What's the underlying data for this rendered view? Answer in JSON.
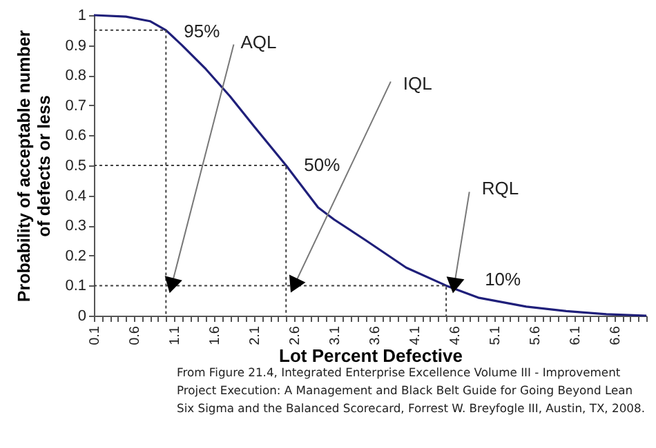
{
  "chart_data": {
    "type": "line",
    "xlabel": "Lot Percent Defective",
    "ylabel": "Probability of acceptable number of defects or less",
    "xlim": [
      0.1,
      7.0
    ],
    "xticks": [
      0.1,
      {
        "value": 0.2,
        "label": null
      },
      {
        "value": 0.3,
        "label": null
      },
      {
        "value": 0.4,
        "label": null
      },
      {
        "value": 0.5,
        "label": null
      },
      0.6,
      {
        "value": 0.7,
        "label": null
      },
      {
        "value": 0.8,
        "label": null
      },
      {
        "value": 0.9,
        "label": null
      },
      {
        "value": 1.0,
        "label": null
      },
      1.1,
      {
        "value": 1.2,
        "label": null
      },
      {
        "value": 1.3,
        "label": null
      },
      {
        "value": 1.4,
        "label": null
      },
      {
        "value": 1.5,
        "label": null
      },
      1.6,
      {
        "value": 1.7,
        "label": null
      },
      {
        "value": 1.8,
        "label": null
      },
      {
        "value": 1.9,
        "label": null
      },
      {
        "value": 2.0,
        "label": null
      },
      2.1,
      {
        "value": 2.2,
        "label": null
      },
      {
        "value": 2.3,
        "label": null
      },
      {
        "value": 2.4,
        "label": null
      },
      {
        "value": 2.5,
        "label": null
      },
      2.6,
      {
        "value": 2.7,
        "label": null
      },
      {
        "value": 2.8,
        "label": null
      },
      {
        "value": 2.9,
        "label": null
      },
      {
        "value": 3.0,
        "label": null
      },
      3.1,
      {
        "value": 3.2,
        "label": null
      },
      {
        "value": 3.3,
        "label": null
      },
      {
        "value": 3.4,
        "label": null
      },
      {
        "value": 3.5,
        "label": null
      },
      3.6,
      {
        "value": 3.7,
        "label": null
      },
      {
        "value": 3.8,
        "label": null
      },
      {
        "value": 3.9,
        "label": null
      },
      {
        "value": 4.0,
        "label": null
      },
      4.1,
      {
        "value": 4.2,
        "label": null
      },
      {
        "value": 4.3,
        "label": null
      },
      {
        "value": 4.4,
        "label": null
      },
      {
        "value": 4.5,
        "label": null
      },
      4.6,
      {
        "value": 4.7,
        "label": null
      },
      {
        "value": 4.8,
        "label": null
      },
      {
        "value": 4.9,
        "label": null
      },
      {
        "value": 5.0,
        "label": null
      },
      5.1,
      {
        "value": 5.2,
        "label": null
      },
      {
        "value": 5.3,
        "label": null
      },
      {
        "value": 5.4,
        "label": null
      },
      {
        "value": 5.5,
        "label": null
      },
      5.6,
      {
        "value": 5.7,
        "label": null
      },
      {
        "value": 5.8,
        "label": null
      },
      {
        "value": 5.9,
        "label": null
      },
      {
        "value": 6.0,
        "label": null
      },
      6.1,
      {
        "value": 6.2,
        "label": null
      },
      {
        "value": 6.3,
        "label": null
      },
      {
        "value": 6.4,
        "label": null
      },
      {
        "value": 6.5,
        "label": null
      },
      6.6,
      {
        "value": 6.7,
        "label": null
      },
      {
        "value": 6.8,
        "label": null
      },
      {
        "value": 6.9,
        "label": null
      },
      {
        "value": 7.0,
        "label": null
      }
    ],
    "ylim": [
      0,
      1
    ],
    "yticks": [
      0,
      0.1,
      0.2,
      0.3,
      0.4,
      0.5,
      0.6,
      0.7,
      0.8,
      0.9,
      1
    ],
    "grid": false,
    "marker": "none",
    "series": [
      {
        "color": "#1f1f7a",
        "line_style": "solid",
        "x": [
          0.1,
          0.5,
          0.8,
          1.0,
          1.2,
          1.5,
          1.8,
          2.1,
          2.5,
          2.9,
          3.1,
          3.5,
          4.0,
          4.5,
          4.9,
          5.5,
          6.0,
          6.5,
          7.0
        ],
        "values": [
          1.0,
          0.995,
          0.98,
          0.95,
          0.9,
          0.82,
          0.73,
          0.63,
          0.5,
          0.36,
          0.32,
          0.25,
          0.16,
          0.1,
          0.06,
          0.03,
          0.015,
          0.005,
          0.0
        ]
      },
      {
        "type": "line",
        "color": "#404040",
        "line_style": "dotted",
        "x": [
          0.1,
          1.0,
          1.0
        ],
        "values": [
          0.95,
          0.95,
          0
        ]
      },
      {
        "type": "line",
        "color": "#404040",
        "line_style": "dotted",
        "x": [
          0.1,
          2.5,
          2.5
        ],
        "values": [
          0.5,
          0.5,
          0
        ]
      },
      {
        "type": "line",
        "color": "#404040",
        "line_style": "dotted",
        "x": [
          0.1,
          4.5,
          4.5
        ],
        "values": [
          0.1,
          0.1,
          0
        ]
      }
    ],
    "annotations": [
      {
        "text": "95%",
        "x": 1.0,
        "y": 0.95
      },
      {
        "text": "50%",
        "x": 2.5,
        "y": 0.5
      },
      {
        "text": "10%",
        "x": 4.5,
        "y": 0.1
      },
      {
        "text": "AQL",
        "x": 1.07,
        "y": 0.1
      },
      {
        "text": "IQL",
        "x": 2.6,
        "y": 0.1
      },
      {
        "text": "RQL",
        "x": 4.6,
        "y": 0.1
      },
      "From Figure 21.4, Integrated Enterprise Excellence Volume III - Improvement Project Execution: A Management and Black Belt Guide for Going Beyond Lean Six Sigma and the Balanced Scorecard, Forrest W. Breyfogle III, Austin, TX, 2008."
    ]
  }
}
